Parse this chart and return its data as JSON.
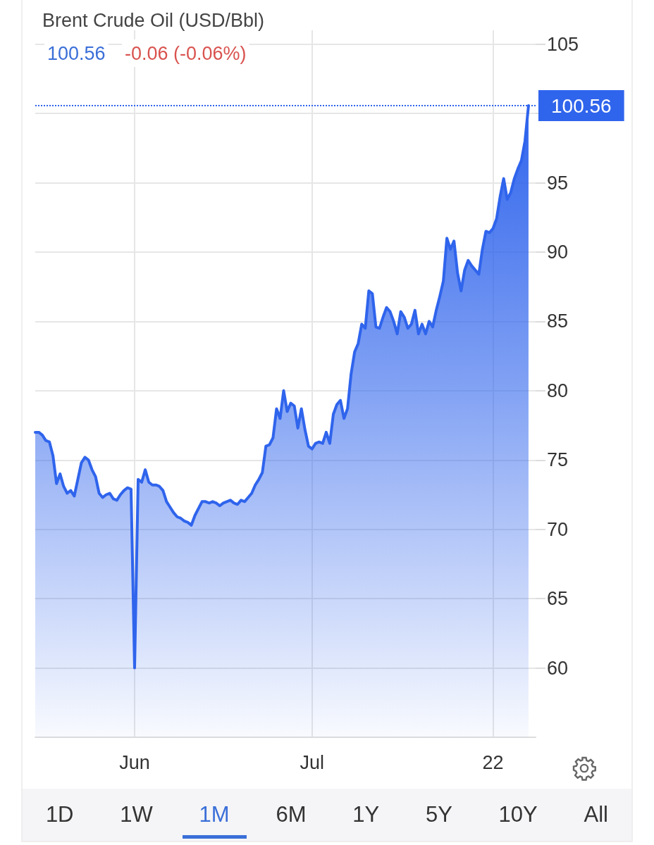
{
  "chart_data": {
    "type": "area",
    "title": "Brent Crude Oil (USD/Bbl)",
    "annotations": [
      "100.56",
      "-0.06 (-0.06%)",
      "1D",
      "1W",
      "1M",
      "6M",
      "1Y",
      "5Y",
      "10Y",
      "All"
    ],
    "categories": [
      null,
      null,
      null,
      null,
      null,
      null,
      null,
      null,
      null,
      null,
      null,
      null,
      null,
      null,
      null,
      null,
      null,
      null,
      null,
      null,
      null,
      null,
      null,
      null,
      null,
      null,
      null,
      null,
      "Jun",
      null,
      null,
      null,
      null,
      null,
      null,
      null,
      null,
      null,
      null,
      null,
      null,
      null,
      null,
      null,
      null,
      null,
      null,
      null,
      null,
      null,
      null,
      null,
      null,
      null,
      null,
      null,
      null,
      null,
      null,
      null,
      null,
      null,
      null,
      null,
      null,
      null,
      null,
      null,
      null,
      null,
      null,
      null,
      null,
      null,
      null,
      null,
      null,
      null,
      "Jul",
      null,
      null,
      null,
      null,
      null,
      null,
      null,
      null,
      null,
      null,
      null,
      null,
      null,
      null,
      null,
      null,
      null,
      null,
      null,
      null,
      null,
      null,
      null,
      null,
      null,
      null,
      null,
      null,
      null,
      null,
      null,
      null,
      null,
      null,
      null,
      null,
      null,
      null,
      null,
      null,
      null,
      null,
      null,
      null,
      null,
      null,
      null,
      null,
      null,
      null,
      "22",
      null,
      null,
      null,
      null,
      null,
      null,
      null,
      null,
      null,
      null,
      null,
      null
    ],
    "series": [
      {
        "color": "#2f64ec",
        "values": [
          77.0,
          77.0,
          76.8,
          76.4,
          76.3,
          75.3,
          73.3,
          74.0,
          73.1,
          72.6,
          72.8,
          72.4,
          73.6,
          74.8,
          75.2,
          75.0,
          74.3,
          73.8,
          72.6,
          72.3,
          72.5,
          72.6,
          72.2,
          72.1,
          72.5,
          72.8,
          73.0,
          72.9,
          60.0,
          73.6,
          73.4,
          74.3,
          73.4,
          73.2,
          73.2,
          73.1,
          72.8,
          72.0,
          71.6,
          71.2,
          70.9,
          70.8,
          70.6,
          70.5,
          70.3,
          71.0,
          71.5,
          72.0,
          72.0,
          71.9,
          72.0,
          71.9,
          71.7,
          71.9,
          72.0,
          72.1,
          71.9,
          71.8,
          72.1,
          72.0,
          72.3,
          72.6,
          73.2,
          73.6,
          74.1,
          76.0,
          76.1,
          76.6,
          78.7,
          78.0,
          80.0,
          78.5,
          79.1,
          78.9,
          77.3,
          78.7,
          77.2,
          76.0,
          75.8,
          76.2,
          76.3,
          76.2,
          77.0,
          76.2,
          78.3,
          79.0,
          79.3,
          78.0,
          78.7,
          81.2,
          82.8,
          83.4,
          84.8,
          84.5,
          87.2,
          87.0,
          84.6,
          84.5,
          85.3,
          86.0,
          85.7,
          85.0,
          84.1,
          85.7,
          85.3,
          84.5,
          84.8,
          85.8,
          84.1,
          84.8,
          84.1,
          85.0,
          84.6,
          85.8,
          86.8,
          87.9,
          91.0,
          90.2,
          90.8,
          88.5,
          87.2,
          88.7,
          89.4,
          89.0,
          88.7,
          88.4,
          90.2,
          91.5,
          91.4,
          91.7,
          92.4,
          94.0,
          95.3,
          93.8,
          94.3,
          95.3,
          96.0,
          96.6,
          98.0,
          100.56,
          null,
          null
        ]
      }
    ],
    "ylim": [
      55,
      106
    ],
    "yticks": [
      60,
      65,
      70,
      75,
      80,
      85,
      90,
      95,
      {
        "value": 100,
        "label": null
      },
      105
    ],
    "ref_lines": [
      {
        "axis": "y",
        "value": 100.56,
        "label": "100.56",
        "color": "#2f64ec",
        "line_style": "dotted"
      }
    ],
    "grid": true,
    "marker": "none",
    "line_style": "solid"
  }
}
